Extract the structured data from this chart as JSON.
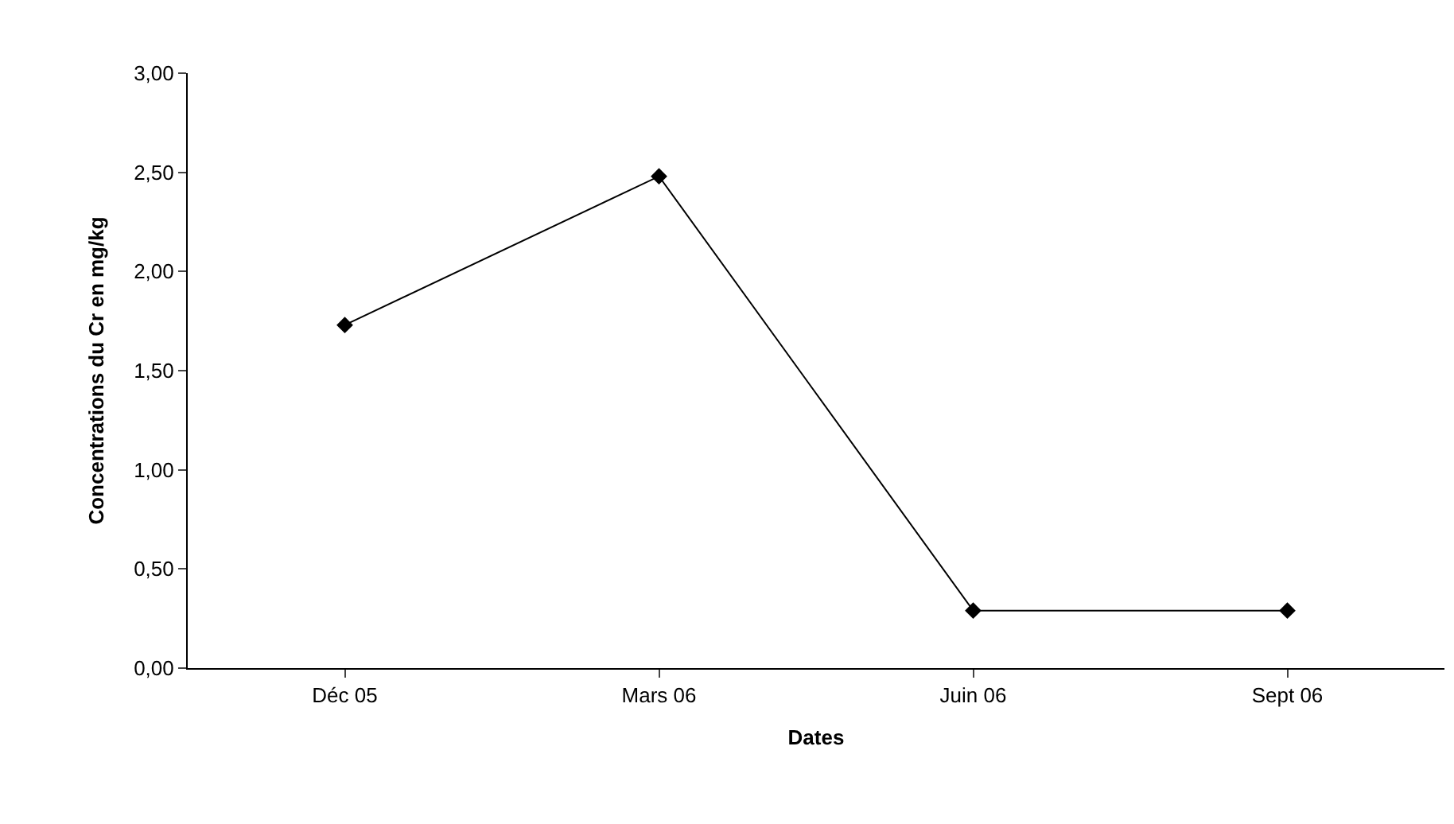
{
  "chart_data": {
    "type": "line",
    "xlabel": "Dates",
    "ylabel": "Concentrations du Cr en mg/kg",
    "categories": [
      "Déc 05",
      "Mars 06",
      "Juin 06",
      "Sept 06"
    ],
    "series": [
      {
        "color": "#000000",
        "values": [
          1.73,
          2.48,
          0.29,
          0.29
        ]
      }
    ],
    "ylim": [
      0,
      3
    ],
    "yticks": [
      {
        "value": 0,
        "label": "0,00"
      },
      {
        "value": 0.5,
        "label": "0,50"
      },
      {
        "value": 1,
        "label": "1,00"
      },
      {
        "value": 1.5,
        "label": "1,50"
      },
      {
        "value": 2,
        "label": "2,00"
      },
      {
        "value": 2.5,
        "label": "2,50"
      },
      {
        "value": 3,
        "label": "3,00"
      }
    ],
    "grid": false,
    "legend": false,
    "marker": "diamond",
    "line_style": "solid"
  }
}
